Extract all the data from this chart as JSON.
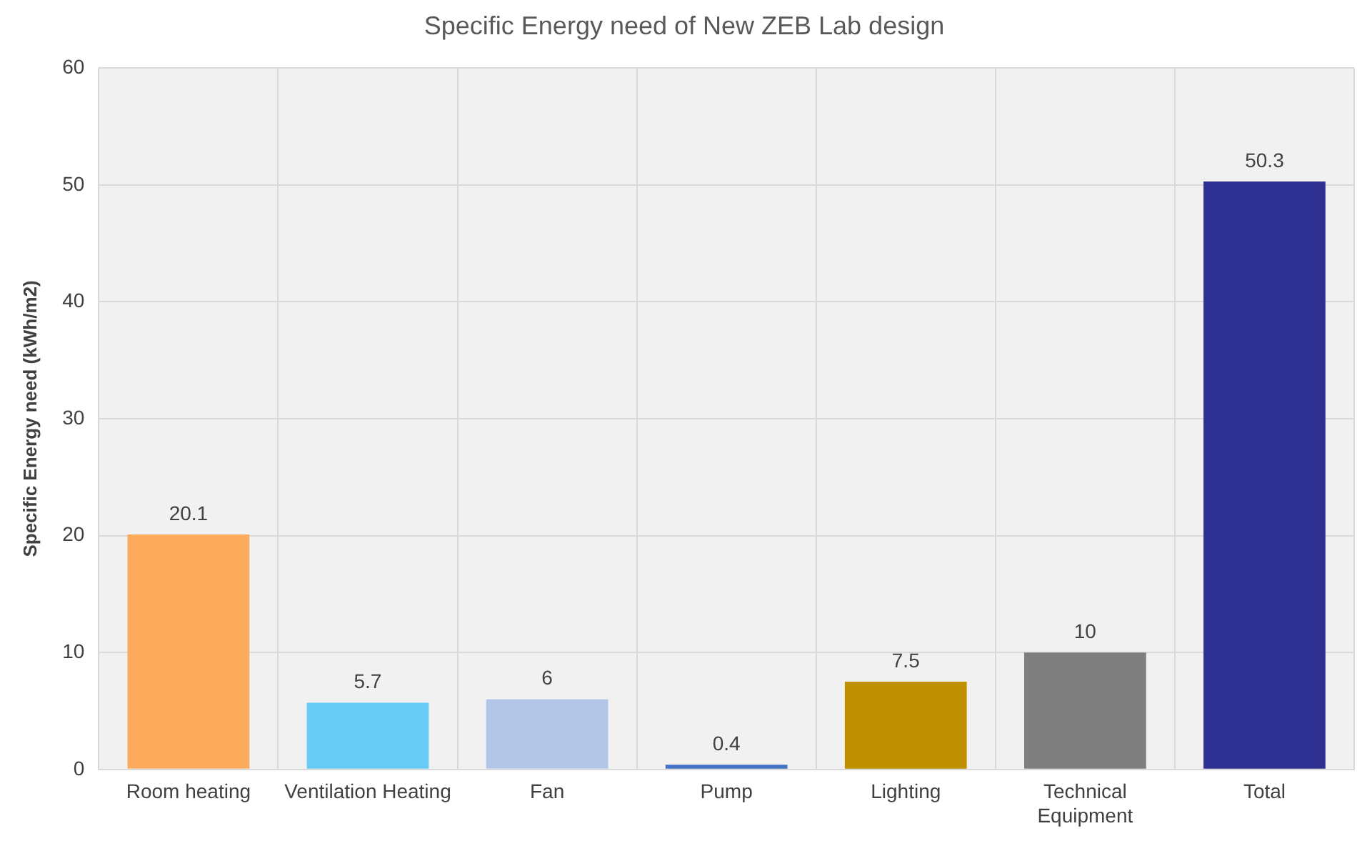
{
  "chart_data": {
    "type": "bar",
    "title": "Specific Energy need of New ZEB Lab design",
    "ylabel": "Specific Energy need (kWh/m2)",
    "categories": [
      "Room heating",
      "Ventilation Heating",
      "Fan",
      "Pump",
      "Lighting",
      "Technical Equipment",
      "Total"
    ],
    "values": [
      20.1,
      5.7,
      6,
      0.4,
      7.5,
      10,
      50.3
    ],
    "colors": [
      "#fbab5b",
      "#66ccf5",
      "#b4c6e7",
      "#4472c4",
      "#bf9000",
      "#7f7f7f",
      "#2e3192"
    ],
    "ylim": [
      0,
      60
    ],
    "yticks": [
      0,
      10,
      20,
      30,
      40,
      50,
      60
    ],
    "grid": true,
    "data_labels": true
  }
}
